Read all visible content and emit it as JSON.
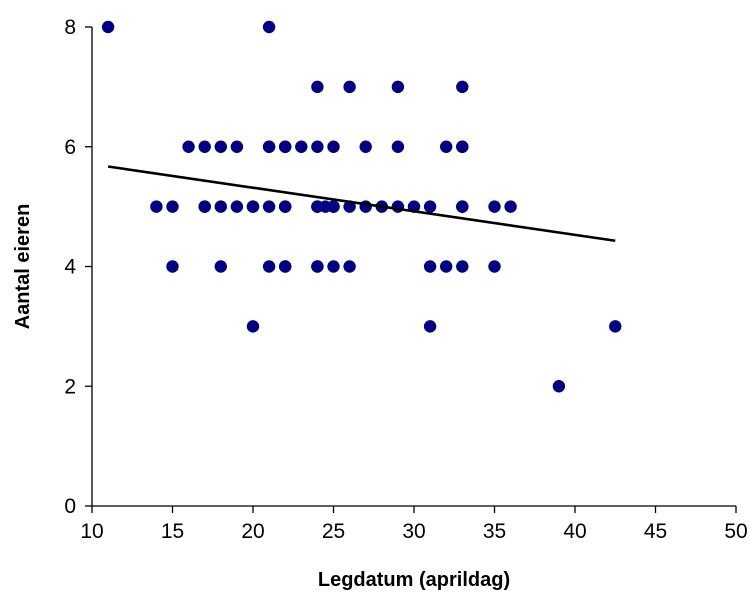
{
  "chart_data": {
    "type": "scatter",
    "xlabel": "Legdatum (aprildag)",
    "ylabel": "Aantal eieren",
    "xlim": [
      10,
      50
    ],
    "ylim": [
      0,
      8
    ],
    "x_ticks": [
      10,
      15,
      20,
      25,
      30,
      35,
      40,
      45,
      50
    ],
    "y_ticks": [
      0,
      2,
      4,
      6,
      8
    ],
    "grid": false,
    "legend": "none",
    "colors": {
      "points": "#000080",
      "trendline": "#000000"
    },
    "points": [
      [
        11,
        8
      ],
      [
        21,
        8
      ],
      [
        24,
        7
      ],
      [
        26,
        7
      ],
      [
        29,
        7
      ],
      [
        33,
        7
      ],
      [
        16,
        6
      ],
      [
        17,
        6
      ],
      [
        18,
        6
      ],
      [
        19,
        6
      ],
      [
        21,
        6
      ],
      [
        21,
        6
      ],
      [
        22,
        6
      ],
      [
        22,
        6
      ],
      [
        23,
        6
      ],
      [
        24,
        6
      ],
      [
        25,
        6
      ],
      [
        27,
        6
      ],
      [
        29,
        6
      ],
      [
        32,
        6
      ],
      [
        33,
        6
      ],
      [
        33,
        6
      ],
      [
        14,
        5
      ],
      [
        15,
        5
      ],
      [
        17,
        5
      ],
      [
        17,
        5
      ],
      [
        18,
        5
      ],
      [
        19,
        5
      ],
      [
        20,
        5
      ],
      [
        20,
        5
      ],
      [
        21,
        5
      ],
      [
        22,
        5
      ],
      [
        22,
        5
      ],
      [
        24,
        5
      ],
      [
        24,
        5
      ],
      [
        24.5,
        5
      ],
      [
        25,
        5
      ],
      [
        25,
        5
      ],
      [
        26,
        5
      ],
      [
        27,
        5
      ],
      [
        28,
        5
      ],
      [
        29,
        5
      ],
      [
        30,
        5
      ],
      [
        31,
        5
      ],
      [
        33,
        5
      ],
      [
        33,
        5
      ],
      [
        35,
        5
      ],
      [
        36,
        5
      ],
      [
        15,
        4
      ],
      [
        18,
        4
      ],
      [
        21,
        4
      ],
      [
        22,
        4
      ],
      [
        22,
        4
      ],
      [
        24,
        4
      ],
      [
        24,
        4
      ],
      [
        25,
        4
      ],
      [
        26,
        4
      ],
      [
        31,
        4
      ],
      [
        32,
        4
      ],
      [
        33,
        4
      ],
      [
        35,
        4
      ],
      [
        20,
        3
      ],
      [
        31,
        3
      ],
      [
        42.5,
        3
      ],
      [
        39,
        2
      ]
    ],
    "trendline": {
      "x": [
        11,
        42.5
      ],
      "y": [
        5.67,
        4.43
      ]
    }
  }
}
